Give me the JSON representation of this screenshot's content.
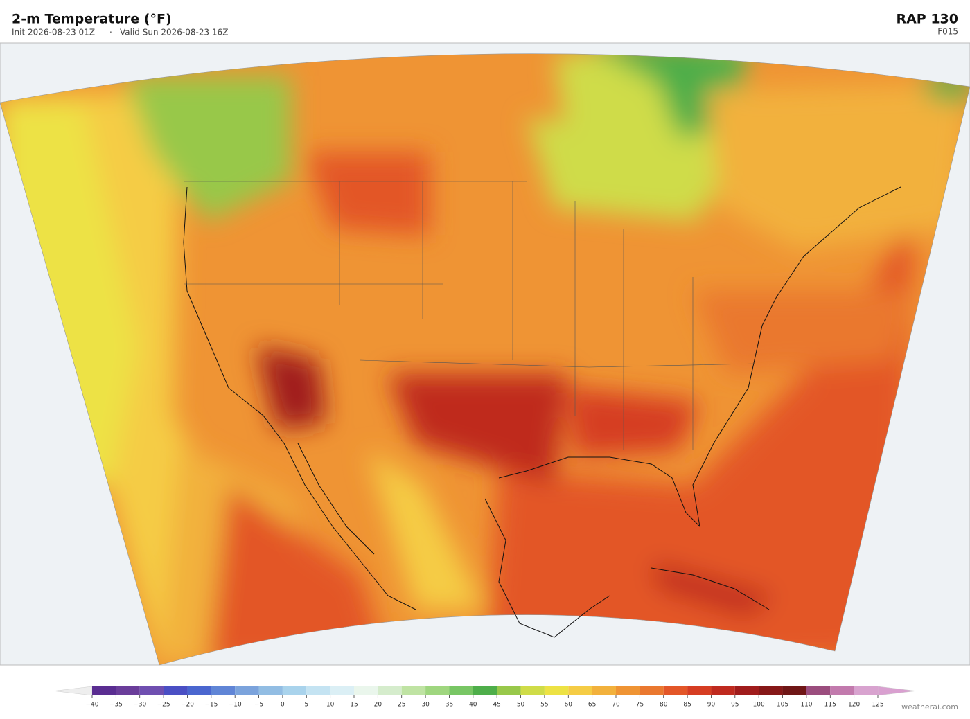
{
  "header": {
    "title": "2-m Temperature  (°F)",
    "init": "Init 2026-08-23 01Z",
    "separator": "·",
    "valid": "Valid Sun 2026-08-23 16Z",
    "model": "RAP  130",
    "forecast_hour": "F015"
  },
  "colorbar": {
    "ticks": [
      {
        "value": -40,
        "label": "−40"
      },
      {
        "value": -35,
        "label": "−35"
      },
      {
        "value": -30,
        "label": "−30"
      },
      {
        "value": -25,
        "label": "−25"
      },
      {
        "value": -20,
        "label": "−20"
      },
      {
        "value": -15,
        "label": "−15"
      },
      {
        "value": -10,
        "label": "−10"
      },
      {
        "value": -5,
        "label": "−5"
      },
      0,
      5,
      10,
      15,
      20,
      25,
      30,
      35,
      40,
      45,
      50,
      55,
      60,
      65,
      70,
      75,
      80,
      85,
      90,
      95,
      100,
      105,
      110,
      115,
      120,
      125
    ],
    "colors": [
      "#5a2d91",
      "#6a3d9a",
      "#6f4fb0",
      "#4a4fc4",
      "#4a66cf",
      "#6085d6",
      "#7ba3dc",
      "#92bde3",
      "#a9d3ec",
      "#c4e3f2",
      "#dbeff5",
      "#eaf6ec",
      "#d5eccc",
      "#bfe3a3",
      "#9fd67f",
      "#78c664",
      "#4eae4a",
      "#98c84a",
      "#cfdc48",
      "#ede244",
      "#f5cc45",
      "#f2b13c",
      "#ef9434",
      "#ea782f",
      "#e35628",
      "#d63d22",
      "#bf2a1f",
      "#a01c1c",
      "#861818",
      "#6f1616",
      "#9b4d7e",
      "#c27aad",
      "#d8a3cf"
    ],
    "under_color": "#eeeeee",
    "over_color": "#d9a0d0"
  },
  "watermark": "weatherai.com"
}
